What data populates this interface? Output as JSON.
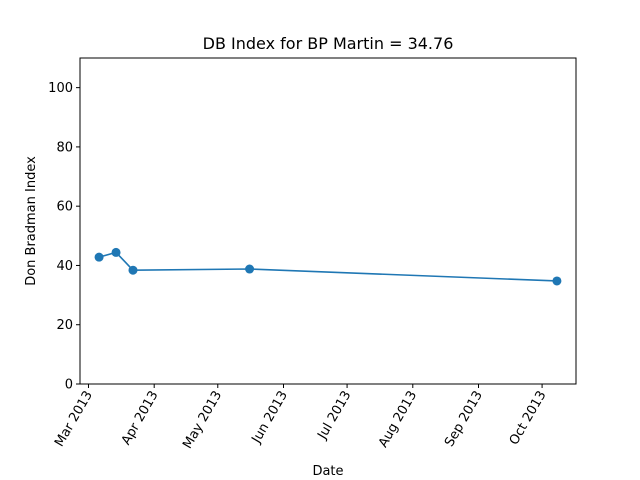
{
  "chart_data": {
    "type": "line",
    "title": "DB Index for BP Martin = 34.76",
    "xlabel": "Date",
    "ylabel": "Don Bradman Index",
    "ylim": [
      0,
      110
    ],
    "xlim": [
      "2013-02-25",
      "2013-10-17"
    ],
    "yticks": [
      0,
      20,
      40,
      60,
      80,
      100
    ],
    "xticks": [
      {
        "date": "2013-03-01",
        "label": "Mar 2013"
      },
      {
        "date": "2013-04-01",
        "label": "Apr 2013"
      },
      {
        "date": "2013-05-01",
        "label": "May 2013"
      },
      {
        "date": "2013-06-01",
        "label": "Jun 2013"
      },
      {
        "date": "2013-07-01",
        "label": "Jul 2013"
      },
      {
        "date": "2013-08-01",
        "label": "Aug 2013"
      },
      {
        "date": "2013-09-01",
        "label": "Sep 2013"
      },
      {
        "date": "2013-10-01",
        "label": "Oct 2013"
      }
    ],
    "grid": false,
    "series": [
      {
        "color": "#1f77b4",
        "marker": "circle",
        "x": [
          "2013-03-06",
          "2013-03-14",
          "2013-03-22",
          "2013-05-16",
          "2013-10-08"
        ],
        "y": [
          42.8,
          44.4,
          38.4,
          38.8,
          34.76
        ]
      }
    ]
  }
}
